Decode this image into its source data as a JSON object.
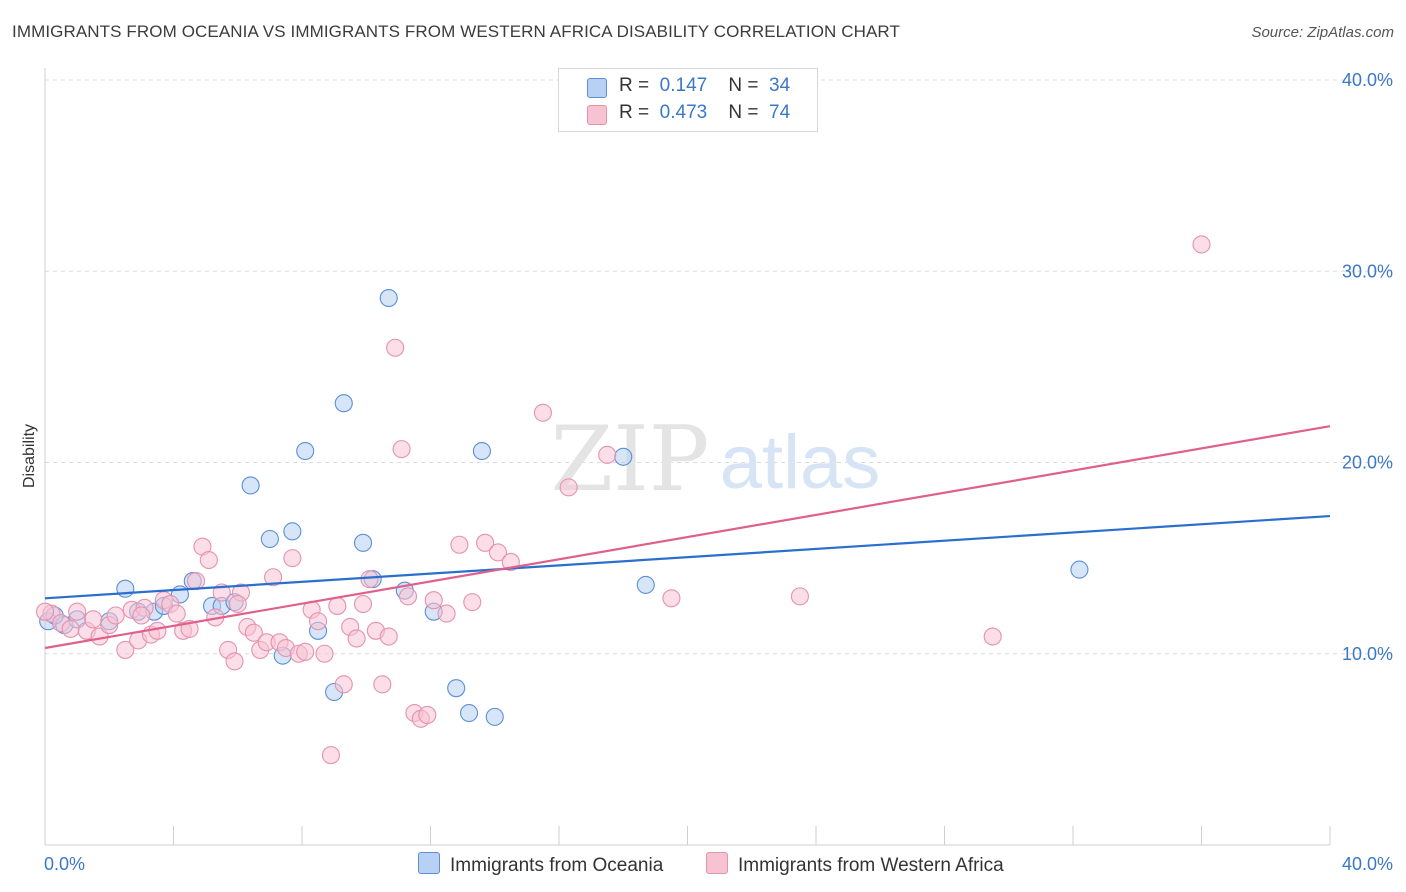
{
  "header": {
    "title": "IMMIGRANTS FROM OCEANIA VS IMMIGRANTS FROM WESTERN AFRICA DISABILITY CORRELATION CHART",
    "source": "Source: ZipAtlas.com"
  },
  "watermark": {
    "zip": "ZIP",
    "atlas": "atlas"
  },
  "colors": {
    "blue_fill": "#b7d0f3",
    "blue_stroke": "#5b8fd6",
    "blue_line": "#2b6fce",
    "pink_fill": "#f7c3d3",
    "pink_stroke": "#e592ad",
    "pink_line": "#e0608d",
    "grid": "#dcdcdc",
    "tick_text": "#3b78c8"
  },
  "legend": {
    "rows": [
      {
        "r_label": "R =",
        "r_value": "0.147",
        "n_label": "N =",
        "n_value": "34"
      },
      {
        "r_label": "R =",
        "r_value": "0.473",
        "n_label": "N =",
        "n_value": "74"
      }
    ]
  },
  "bottom_legend": {
    "series1": "Immigrants from Oceania",
    "series2": "Immigrants from Western Africa"
  },
  "chart_data": {
    "type": "scatter",
    "title": "IMMIGRANTS FROM OCEANIA VS IMMIGRANTS FROM WESTERN AFRICA DISABILITY CORRELATION CHART",
    "xlabel": "",
    "ylabel": "Disability",
    "xlim": [
      0,
      40
    ],
    "ylim": [
      0,
      40
    ],
    "x_tick_labels": [
      "0.0%",
      "40.0%"
    ],
    "y_ticks": [
      10,
      20,
      30,
      40
    ],
    "y_tick_labels": [
      "10.0%",
      "20.0%",
      "30.0%",
      "40.0%"
    ],
    "grid": "horizontal dashed",
    "legend_position": "top-center",
    "series": [
      {
        "name": "Immigrants from Oceania",
        "color": "#b7d0f3",
        "trend": {
          "x": [
            0,
            40
          ],
          "y": [
            12.9,
            17.2
          ]
        },
        "points": [
          [
            0.1,
            11.7
          ],
          [
            0.6,
            11.5
          ],
          [
            1.0,
            11.8
          ],
          [
            2.0,
            11.7
          ],
          [
            2.5,
            13.4
          ],
          [
            2.9,
            12.2
          ],
          [
            3.4,
            12.2
          ],
          [
            3.7,
            12.5
          ],
          [
            4.2,
            13.1
          ],
          [
            4.6,
            13.8
          ],
          [
            5.2,
            12.5
          ],
          [
            5.5,
            12.5
          ],
          [
            5.9,
            12.7
          ],
          [
            6.4,
            18.8
          ],
          [
            7.0,
            16.0
          ],
          [
            7.4,
            9.9
          ],
          [
            7.7,
            16.4
          ],
          [
            8.1,
            20.6
          ],
          [
            8.5,
            11.2
          ],
          [
            9.0,
            8.0
          ],
          [
            9.3,
            23.1
          ],
          [
            9.9,
            15.8
          ],
          [
            10.2,
            13.9
          ],
          [
            10.7,
            28.6
          ],
          [
            11.2,
            13.3
          ],
          [
            12.1,
            12.2
          ],
          [
            12.8,
            8.2
          ],
          [
            13.2,
            6.9
          ],
          [
            13.6,
            20.6
          ],
          [
            14.0,
            6.7
          ],
          [
            18.0,
            20.3
          ],
          [
            18.7,
            13.6
          ],
          [
            32.2,
            14.4
          ],
          [
            0.3,
            12.0
          ]
        ]
      },
      {
        "name": "Immigrants from Western Africa",
        "color": "#f7c3d3",
        "trend": {
          "x": [
            0,
            40
          ],
          "y": [
            10.3,
            21.9
          ]
        },
        "points": [
          [
            0.2,
            12.1
          ],
          [
            0.5,
            11.6
          ],
          [
            0.8,
            11.3
          ],
          [
            1.0,
            12.2
          ],
          [
            1.3,
            11.2
          ],
          [
            1.5,
            11.8
          ],
          [
            1.7,
            10.9
          ],
          [
            2.0,
            11.5
          ],
          [
            2.2,
            12.0
          ],
          [
            2.5,
            10.2
          ],
          [
            2.7,
            12.3
          ],
          [
            2.9,
            10.7
          ],
          [
            3.1,
            12.4
          ],
          [
            3.3,
            11.0
          ],
          [
            3.5,
            11.2
          ],
          [
            3.7,
            12.8
          ],
          [
            3.9,
            12.6
          ],
          [
            4.1,
            12.1
          ],
          [
            4.3,
            11.2
          ],
          [
            4.5,
            11.3
          ],
          [
            4.7,
            13.8
          ],
          [
            4.9,
            15.6
          ],
          [
            5.1,
            14.9
          ],
          [
            5.3,
            11.9
          ],
          [
            5.5,
            13.2
          ],
          [
            5.7,
            10.2
          ],
          [
            5.9,
            9.6
          ],
          [
            6.1,
            13.2
          ],
          [
            6.3,
            11.4
          ],
          [
            6.5,
            11.1
          ],
          [
            6.7,
            10.2
          ],
          [
            6.9,
            10.6
          ],
          [
            7.1,
            14.0
          ],
          [
            7.3,
            10.6
          ],
          [
            7.5,
            10.3
          ],
          [
            7.7,
            15.0
          ],
          [
            7.9,
            10.0
          ],
          [
            8.1,
            10.1
          ],
          [
            8.3,
            12.3
          ],
          [
            8.5,
            11.7
          ],
          [
            8.7,
            10.0
          ],
          [
            8.9,
            4.7
          ],
          [
            9.1,
            12.5
          ],
          [
            9.3,
            8.4
          ],
          [
            9.5,
            11.4
          ],
          [
            9.7,
            10.8
          ],
          [
            9.9,
            12.6
          ],
          [
            10.1,
            13.9
          ],
          [
            10.3,
            11.2
          ],
          [
            10.5,
            8.4
          ],
          [
            10.7,
            10.9
          ],
          [
            10.9,
            26.0
          ],
          [
            11.1,
            20.7
          ],
          [
            11.3,
            13.0
          ],
          [
            11.5,
            6.9
          ],
          [
            11.7,
            6.6
          ],
          [
            11.9,
            6.8
          ],
          [
            12.1,
            12.8
          ],
          [
            12.5,
            12.1
          ],
          [
            12.9,
            15.7
          ],
          [
            13.3,
            12.7
          ],
          [
            13.7,
            15.8
          ],
          [
            14.1,
            15.3
          ],
          [
            14.5,
            14.8
          ],
          [
            15.5,
            22.6
          ],
          [
            16.3,
            18.7
          ],
          [
            17.5,
            20.4
          ],
          [
            19.5,
            12.9
          ],
          [
            23.5,
            13.0
          ],
          [
            29.5,
            10.9
          ],
          [
            36.0,
            31.4
          ],
          [
            0.0,
            12.2
          ],
          [
            6.0,
            12.6
          ],
          [
            3.0,
            12.0
          ]
        ]
      }
    ]
  }
}
